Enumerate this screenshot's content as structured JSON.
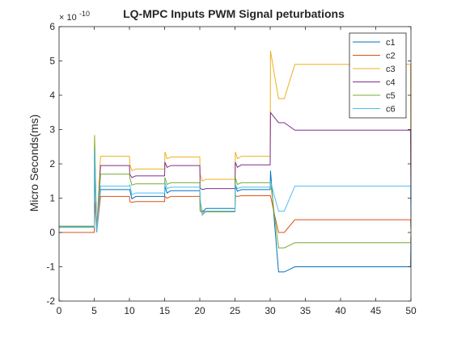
{
  "chart_data": {
    "type": "line",
    "title": "LQ-MPC Inputs PWM Signal peturbations",
    "xlabel": "",
    "ylabel": "Micro Seconds(ms)",
    "exponent_label": "× 10",
    "exponent_power": "-10",
    "xlim": [
      0,
      50
    ],
    "ylim": [
      -2,
      6
    ],
    "xticks": [
      0,
      5,
      10,
      15,
      20,
      25,
      30,
      35,
      40,
      45,
      50
    ],
    "yticks": [
      -2,
      -1,
      0,
      1,
      2,
      3,
      4,
      5,
      6
    ],
    "grid": false,
    "legend_position": "top-right",
    "series": [
      {
        "name": "c1",
        "color": "#0072BD",
        "segments": [
          [
            0,
            0.15
          ],
          [
            5,
            1.25
          ],
          [
            10,
            1.05
          ],
          [
            15,
            1.22
          ],
          [
            20,
            0.7
          ],
          [
            25,
            1.25
          ],
          [
            30,
            -1.0
          ]
        ],
        "peaks": [
          2.45,
          1.25,
          1.35,
          0.9,
          1.35,
          1.8
        ],
        "dips": [
          0,
          0.98,
          1.15,
          0.6,
          1.2,
          -1.15
        ]
      },
      {
        "name": "c2",
        "color": "#D95319",
        "segments": [
          [
            0,
            0.0
          ],
          [
            5,
            1.05
          ],
          [
            10,
            0.9
          ],
          [
            15,
            1.05
          ],
          [
            20,
            0.62
          ],
          [
            25,
            1.07
          ],
          [
            30,
            0.37
          ]
        ],
        "peaks": [
          1.05,
          0.9,
          1.05,
          0.62,
          1.07,
          1.07
        ],
        "dips": [
          0,
          0.88,
          1.0,
          0.6,
          1.05,
          0.0
        ]
      },
      {
        "name": "c3",
        "color": "#EDB120",
        "segments": [
          [
            0,
            0.18
          ],
          [
            5,
            2.22
          ],
          [
            10,
            1.85
          ],
          [
            15,
            2.2
          ],
          [
            20,
            1.55
          ],
          [
            25,
            2.22
          ],
          [
            30,
            4.9
          ]
        ],
        "peaks": [
          2.85,
          2.0,
          2.35,
          1.7,
          2.35,
          5.3
        ],
        "dips": [
          0,
          1.8,
          2.15,
          1.5,
          2.15,
          3.9
        ]
      },
      {
        "name": "c4",
        "color": "#7E2F8E",
        "segments": [
          [
            0,
            0.18
          ],
          [
            5,
            1.95
          ],
          [
            10,
            1.65
          ],
          [
            15,
            1.95
          ],
          [
            20,
            1.28
          ],
          [
            25,
            1.97
          ],
          [
            30,
            2.98
          ]
        ],
        "peaks": [
          2.45,
          1.7,
          2.05,
          1.3,
          2.05,
          3.5
        ],
        "dips": [
          0,
          1.6,
          1.9,
          1.25,
          1.9,
          3.2
        ]
      },
      {
        "name": "c5",
        "color": "#77AC30",
        "segments": [
          [
            0,
            0.18
          ],
          [
            5,
            1.7
          ],
          [
            10,
            1.42
          ],
          [
            15,
            1.45
          ],
          [
            20,
            0.6
          ],
          [
            25,
            1.45
          ],
          [
            30,
            -0.3
          ]
        ],
        "peaks": [
          2.8,
          1.6,
          1.6,
          0.65,
          1.6,
          1.5
        ],
        "dips": [
          0,
          1.38,
          1.4,
          0.55,
          1.4,
          -0.45
        ]
      },
      {
        "name": "c6",
        "color": "#4DBEEE",
        "segments": [
          [
            0,
            0.15
          ],
          [
            5,
            1.35
          ],
          [
            10,
            1.15
          ],
          [
            15,
            1.32
          ],
          [
            20,
            0.62
          ],
          [
            25,
            1.32
          ],
          [
            30,
            1.35
          ]
        ],
        "peaks": [
          2.4,
          1.4,
          1.45,
          1.0,
          1.4,
          1.5
        ],
        "dips": [
          0,
          1.1,
          1.28,
          0.5,
          1.28,
          0.62
        ]
      }
    ]
  }
}
